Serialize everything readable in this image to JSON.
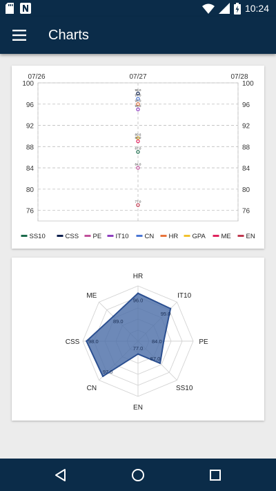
{
  "status_bar": {
    "time": "10:24"
  },
  "app_bar": {
    "title": "Charts"
  },
  "colors": {
    "primary": "#0b2c49",
    "radar_fill": "#4d6fa8",
    "radar_stroke": "#2b4f90"
  },
  "icons": {
    "menu": "hamburger-menu-icon",
    "back": "triangle-back-icon",
    "home": "circle-home-icon",
    "recents": "square-recents-icon"
  },
  "chart_data": [
    {
      "type": "scatter",
      "x_ticks": [
        "07/26",
        "07/27",
        "07/28"
      ],
      "ylim": [
        74,
        100
      ],
      "y_ticks": [
        76,
        80,
        84,
        88,
        92,
        96,
        100
      ],
      "y_tick_labels": [
        "76",
        "80",
        "84",
        "88",
        "92",
        "96",
        "100"
      ],
      "grid": true,
      "legend_position": "bottom",
      "series": [
        {
          "name": "SS10",
          "color": "#1b6b4b",
          "x": "07/27",
          "y": 87.0
        },
        {
          "name": "CSS",
          "color": "#0b1f4d",
          "x": "07/27",
          "y": 98.0
        },
        {
          "name": "PE",
          "color": "#c0509a",
          "x": "07/27",
          "y": 84.0
        },
        {
          "name": "IT10",
          "color": "#8e3fbf",
          "x": "07/27",
          "y": 95.0
        },
        {
          "name": "CN",
          "color": "#4a76d4",
          "x": "07/27",
          "y": 97.0
        },
        {
          "name": "HR",
          "color": "#e8743b",
          "x": "07/27",
          "y": 96.0
        },
        {
          "name": "GPA",
          "color": "#f2c12e",
          "x": "07/27",
          "y": 89.6
        },
        {
          "name": "ME",
          "color": "#e0245e",
          "x": "07/27",
          "y": 89.0
        },
        {
          "name": "EN",
          "color": "#c0394f",
          "x": "07/27",
          "y": 77.0
        }
      ],
      "point_labels": [
        {
          "y": 98.0,
          "text": "98.0"
        },
        {
          "y": 97.0,
          "text": "97.0"
        },
        {
          "y": 96.0,
          "text": "96.0"
        },
        {
          "y": 95.0,
          "text": "95.0"
        },
        {
          "y": 89.6,
          "text": "89.6"
        },
        {
          "y": 89.0,
          "text": "89.0"
        },
        {
          "y": 87.0,
          "text": "87.0"
        },
        {
          "y": 84.0,
          "text": "84.0"
        },
        {
          "y": 77.0,
          "text": "77.0"
        }
      ]
    },
    {
      "type": "radar",
      "axes": [
        "HR",
        "IT10",
        "PE",
        "SS10",
        "EN",
        "CN",
        "CSS",
        "ME"
      ],
      "values": [
        96.0,
        95.0,
        84.0,
        87.0,
        77.0,
        97.0,
        98.0,
        89.0
      ],
      "value_labels": [
        "96.0",
        "95.0",
        "84.0",
        "87.0",
        "77.0",
        "97.0",
        "98.0",
        "89.0"
      ],
      "range": [
        70,
        100
      ],
      "rings": 5
    }
  ]
}
